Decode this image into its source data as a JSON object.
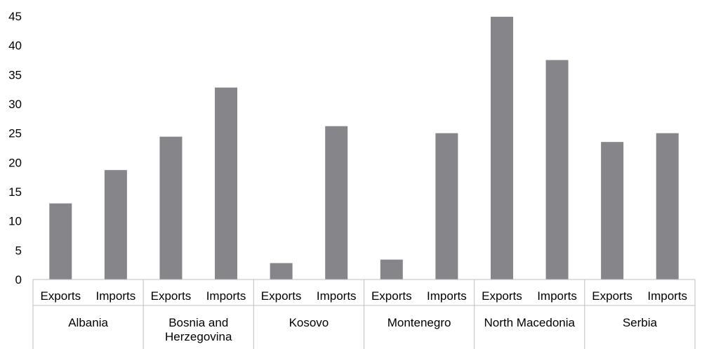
{
  "chart_data": {
    "type": "bar",
    "title": "",
    "xlabel": "",
    "ylabel": "",
    "ylim": [
      0,
      45
    ],
    "yticks": [
      0,
      5,
      10,
      15,
      20,
      25,
      30,
      35,
      40,
      45
    ],
    "grid": false,
    "legend": "none",
    "bar_color": "#868589",
    "groups": [
      {
        "name": "Albania",
        "bars": [
          {
            "label": "Exports",
            "value": 13.0
          },
          {
            "label": "Imports",
            "value": 18.7
          }
        ]
      },
      {
        "name": "Bosnia and Herzegovina",
        "bars": [
          {
            "label": "Exports",
            "value": 24.4
          },
          {
            "label": "Imports",
            "value": 32.8
          }
        ]
      },
      {
        "name": "Kosovo",
        "bars": [
          {
            "label": "Exports",
            "value": 2.8
          },
          {
            "label": "Imports",
            "value": 26.2
          }
        ]
      },
      {
        "name": "Montenegro",
        "bars": [
          {
            "label": "Exports",
            "value": 3.4
          },
          {
            "label": "Imports",
            "value": 25.0
          }
        ]
      },
      {
        "name": "North Macedonia",
        "bars": [
          {
            "label": "Exports",
            "value": 44.9
          },
          {
            "label": "Imports",
            "value": 37.5
          }
        ]
      },
      {
        "name": "Serbia",
        "bars": [
          {
            "label": "Exports",
            "value": 23.5
          },
          {
            "label": "Imports",
            "value": 25.0
          }
        ]
      }
    ]
  }
}
